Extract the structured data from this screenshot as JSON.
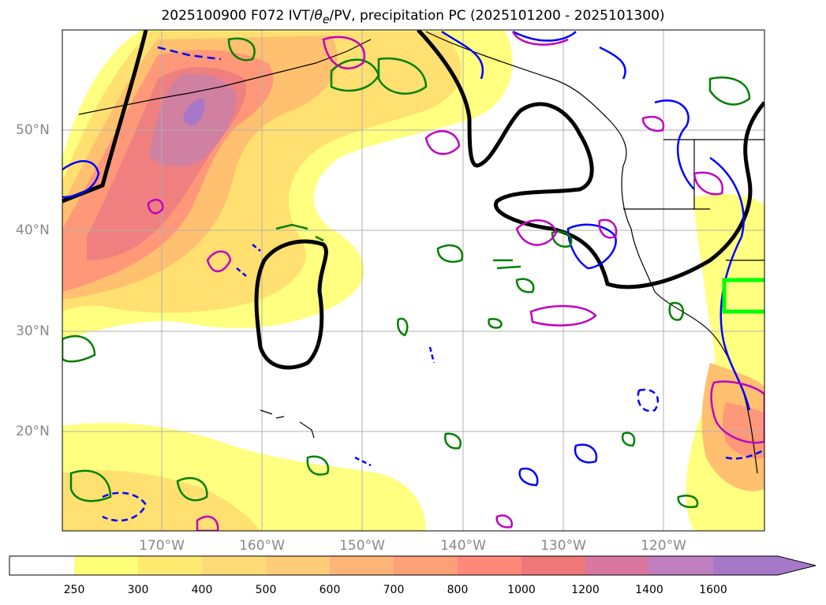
{
  "title": {
    "prefix": "2025100900 F072 IVT/",
    "theta": "θ",
    "subscript": "e",
    "suffix": "/PV, precipitation PC (2025101200 - 2025101300)"
  },
  "axes": {
    "lat_labels": [
      "50°N",
      "40°N",
      "30°N",
      "20°N"
    ],
    "lon_labels": [
      "170°W",
      "160°W",
      "150°W",
      "140°W",
      "130°W",
      "120°W"
    ]
  },
  "colorbar": {
    "ticks": [
      "250",
      "300",
      "400",
      "500",
      "600",
      "700",
      "800",
      "1000",
      "1200",
      "1400",
      "1600"
    ],
    "colors": [
      "#ffff78",
      "#ffea70",
      "#ffdb78",
      "#ffcd78",
      "#ffb478",
      "#ffa078",
      "#ff8878",
      "#f07878",
      "#d878a0",
      "#c080c0",
      "#a878c8"
    ],
    "extend": "max"
  },
  "layers": {
    "ivt_fill": "IVT shading",
    "contour_black": "#000000",
    "contour_blue": "#0000ff",
    "contour_green": "#008000",
    "contour_magenta": "#c000c0",
    "highlight_box": "#00ff00"
  }
}
